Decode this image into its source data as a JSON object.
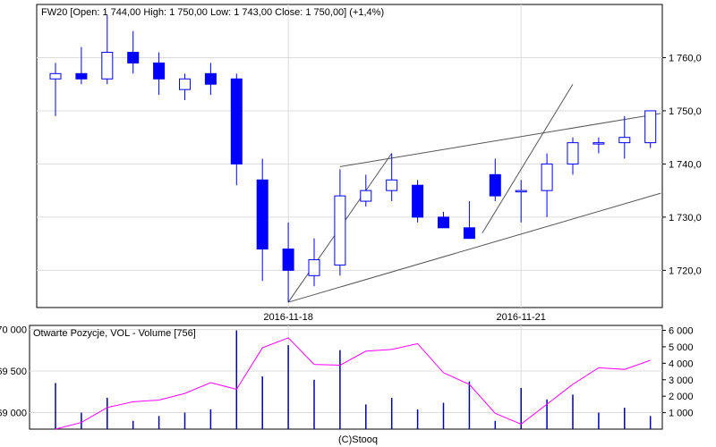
{
  "chart_data": [
    {
      "type": "candlestick",
      "title": "FW20 [Open: 1 744,00  High: 1 750,00  Low: 1 743,00  Close: 1 750,00] (+1,4%)",
      "x_tick_labels": [
        "2016-11-18",
        "2016-11-21"
      ],
      "x_tick_index": [
        9,
        18
      ],
      "y_ticks": [
        {
          "value": 1720,
          "label": "1 720,0"
        },
        {
          "value": 1730,
          "label": "1 730,0"
        },
        {
          "value": 1740,
          "label": "1 740,0"
        },
        {
          "value": 1750,
          "label": "1 750,0"
        },
        {
          "value": 1760,
          "label": "1 760,0"
        }
      ],
      "ylim": [
        1713,
        1770
      ],
      "grid": true,
      "up_color": "#ffffff",
      "down_color": "#0000ff",
      "candles": [
        {
          "o": 1756,
          "h": 1759,
          "l": 1749,
          "c": 1757
        },
        {
          "o": 1757,
          "h": 1762,
          "l": 1755,
          "c": 1756
        },
        {
          "o": 1756,
          "h": 1768,
          "l": 1755,
          "c": 1761
        },
        {
          "o": 1761,
          "h": 1765,
          "l": 1757,
          "c": 1759
        },
        {
          "o": 1759,
          "h": 1761,
          "l": 1753,
          "c": 1756
        },
        {
          "o": 1754,
          "h": 1757,
          "l": 1752,
          "c": 1756
        },
        {
          "o": 1757,
          "h": 1759,
          "l": 1753,
          "c": 1755
        },
        {
          "o": 1756,
          "h": 1757,
          "l": 1736,
          "c": 1740
        },
        {
          "o": 1737,
          "h": 1741,
          "l": 1718,
          "c": 1724
        },
        {
          "o": 1724,
          "h": 1729,
          "l": 1714,
          "c": 1720
        },
        {
          "o": 1719,
          "h": 1726,
          "l": 1717,
          "c": 1722
        },
        {
          "o": 1721,
          "h": 1739,
          "l": 1719,
          "c": 1734
        },
        {
          "o": 1733,
          "h": 1738,
          "l": 1732,
          "c": 1735
        },
        {
          "o": 1735,
          "h": 1742,
          "l": 1733,
          "c": 1737
        },
        {
          "o": 1736,
          "h": 1737,
          "l": 1729,
          "c": 1730
        },
        {
          "o": 1730,
          "h": 1731,
          "l": 1728,
          "c": 1728
        },
        {
          "o": 1728,
          "h": 1733,
          "l": 1726,
          "c": 1726
        },
        {
          "o": 1738,
          "h": 1741,
          "l": 1733,
          "c": 1734
        },
        {
          "o": 1735,
          "h": 1737,
          "l": 1729,
          "c": 1735
        },
        {
          "o": 1735,
          "h": 1742,
          "l": 1730,
          "c": 1740
        },
        {
          "o": 1740,
          "h": 1745,
          "l": 1738,
          "c": 1744
        },
        {
          "o": 1744,
          "h": 1745,
          "l": 1742,
          "c": 1744
        },
        {
          "o": 1744,
          "h": 1749,
          "l": 1741,
          "c": 1745
        },
        {
          "o": 1744,
          "h": 1750,
          "l": 1743,
          "c": 1750
        }
      ],
      "trend_lines": [
        {
          "from": [
            9.0,
            1714.0
          ],
          "to": [
            13.0,
            1742.0
          ]
        },
        {
          "from": [
            9.0,
            1714.0
          ],
          "to": [
            23.4,
            1734.5
          ]
        },
        {
          "from": [
            11.0,
            1739.5
          ],
          "to": [
            23.4,
            1749.5
          ]
        },
        {
          "from": [
            16.5,
            1727.0
          ],
          "to": [
            20.0,
            1755.0
          ]
        }
      ]
    },
    {
      "type": "bar+line",
      "title": "Otwarte Pozycje, VOL - Volume [756]",
      "left_ticks": [
        {
          "value": 69000,
          "label": "69 000"
        },
        {
          "value": 69500,
          "label": "69 500"
        },
        {
          "value": 70000,
          "label": "70 000"
        }
      ],
      "left_ylim": [
        68800,
        70050
      ],
      "right_ticks": [
        {
          "value": 1000,
          "label": "1 000"
        },
        {
          "value": 2000,
          "label": "2 000"
        },
        {
          "value": 3000,
          "label": "3 000"
        },
        {
          "value": 4000,
          "label": "4 000"
        },
        {
          "value": 5000,
          "label": "5 000"
        },
        {
          "value": 6000,
          "label": "6 000"
        }
      ],
      "right_ylim": [
        0,
        6300
      ],
      "bar_color": "#0000aa",
      "line_color": "#ff00ff",
      "volume": [
        2800,
        1000,
        1900,
        500,
        800,
        1000,
        1200,
        6000,
        3200,
        5100,
        3000,
        4800,
        1500,
        1900,
        1200,
        1600,
        2900,
        500,
        2500,
        1800,
        2100,
        1000,
        1300,
        800
      ],
      "open_interest": [
        68800,
        68880,
        69060,
        69130,
        69150,
        69230,
        69360,
        69280,
        69780,
        69900,
        69580,
        69570,
        69740,
        69760,
        69830,
        69480,
        69340,
        68990,
        68860,
        69100,
        69340,
        69540,
        69520,
        69630
      ]
    }
  ],
  "footer": "(C)Stooq"
}
